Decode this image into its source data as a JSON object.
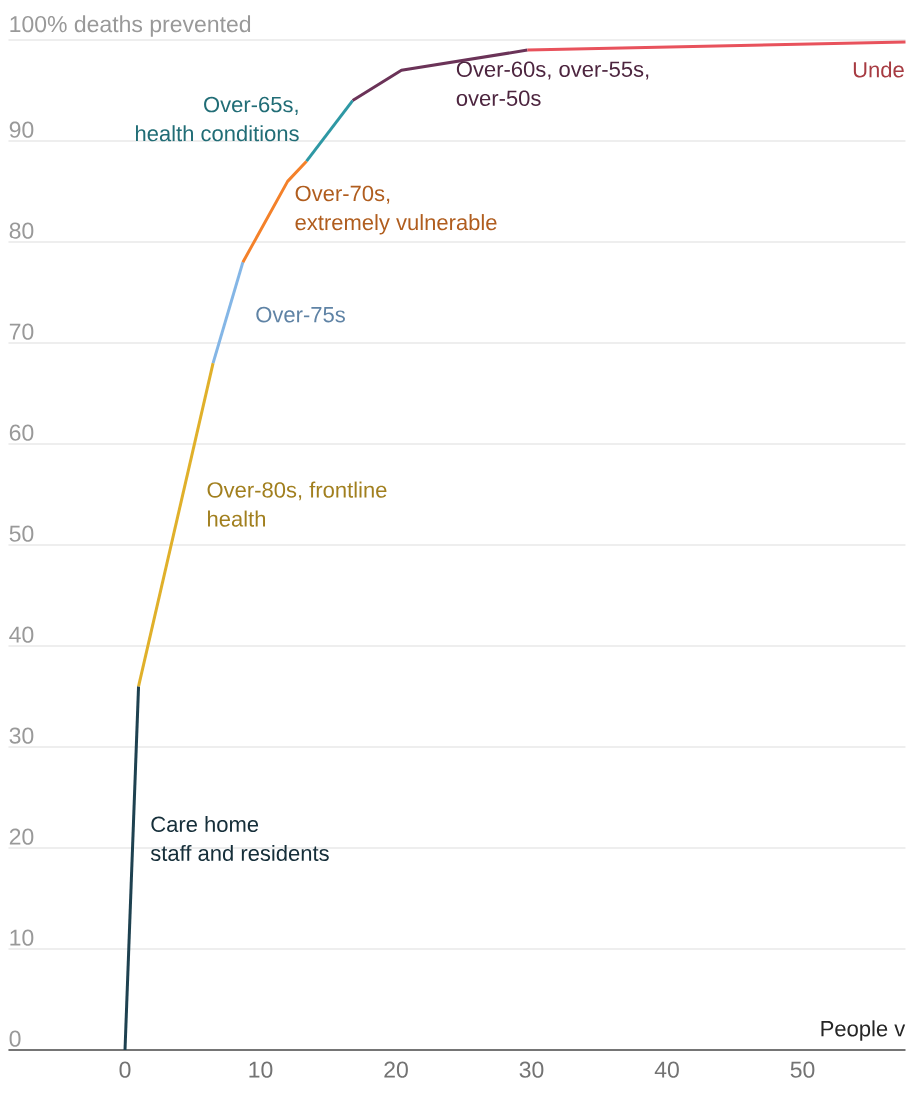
{
  "chart_data": {
    "type": "line",
    "xlabel": "People v",
    "xlim": [
      -8.6,
      57.6
    ],
    "xticks": [
      0,
      10,
      20,
      30,
      40,
      50
    ],
    "ylim": [
      0,
      100
    ],
    "yticks": [
      0,
      10,
      20,
      30,
      40,
      50,
      60,
      70,
      80,
      90,
      {
        "value": 100,
        "label": "100% deaths prevented"
      }
    ],
    "grid": "y",
    "legend": false,
    "marker": "none",
    "line_style": "solid",
    "series": [
      {
        "name": "Care home\nstaff and residents",
        "color": "#1e4150",
        "x": [
          0,
          1
        ],
        "values": [
          0,
          36
        ]
      },
      {
        "name": "Over-80s, frontline\nhealth",
        "color": "#e0b02a",
        "x": [
          1,
          6.5
        ],
        "values": [
          36,
          68
        ]
      },
      {
        "name": "Over-75s",
        "color": "#84b6e6",
        "x": [
          6.5,
          8.7
        ],
        "values": [
          68,
          78
        ]
      },
      {
        "name": "Over-70s,\nextremely vulnerable",
        "color": "#f4812a",
        "x": [
          8.7,
          12,
          13.4
        ],
        "values": [
          78,
          86,
          88
        ]
      },
      {
        "name": "Over-65s,\nhealth conditions",
        "color": "#2e98a4",
        "x": [
          13.4,
          16.8
        ],
        "values": [
          88,
          94
        ]
      },
      {
        "name": "Over-60s, over-55s,\nover-50s",
        "color": "#6b3358",
        "x": [
          16.8,
          20.4,
          29.7
        ],
        "values": [
          94,
          97,
          99
        ]
      },
      {
        "name": "Unde",
        "color": "#e8525c",
        "x": [
          29.7,
          57.6
        ],
        "values": [
          99,
          99.8
        ]
      }
    ]
  }
}
